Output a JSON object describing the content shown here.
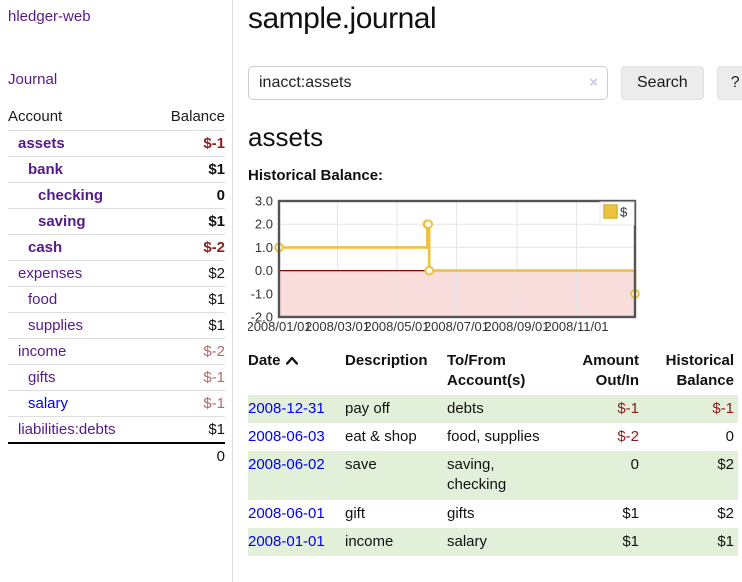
{
  "sidebar": {
    "brand": "hledger-web",
    "journal_link": "Journal",
    "accounts_header": "Account",
    "balance_header": "Balance",
    "accounts": [
      {
        "name": "assets",
        "balance": "$-1",
        "depth": 1,
        "bold": true,
        "link": "purple",
        "balance_class": "bold neg-strong"
      },
      {
        "name": "bank",
        "balance": "$1",
        "depth": 2,
        "bold": true,
        "link": "purple",
        "balance_class": "bold"
      },
      {
        "name": "checking",
        "balance": "0",
        "depth": 3,
        "bold": true,
        "link": "purple",
        "balance_class": "bold"
      },
      {
        "name": "saving",
        "balance": "$1",
        "depth": 3,
        "bold": true,
        "link": "purple",
        "balance_class": "bold"
      },
      {
        "name": "cash",
        "balance": "$-2",
        "depth": 2,
        "bold": true,
        "link": "purple",
        "balance_class": "bold neg-strong"
      },
      {
        "name": "expenses",
        "balance": "$2",
        "depth": 1,
        "bold": false,
        "link": "purple",
        "balance_class": ""
      },
      {
        "name": "food",
        "balance": "$1",
        "depth": 2,
        "bold": false,
        "link": "purple",
        "balance_class": ""
      },
      {
        "name": "supplies",
        "balance": "$1",
        "depth": 2,
        "bold": false,
        "link": "purple",
        "balance_class": ""
      },
      {
        "name": "income",
        "balance": "$-2",
        "depth": 1,
        "bold": false,
        "link": "purple",
        "balance_class": "neg-muted"
      },
      {
        "name": "gifts",
        "balance": "$-1",
        "depth": 2,
        "bold": false,
        "link": "purple",
        "balance_class": "neg-muted"
      },
      {
        "name": "salary",
        "balance": "$-1",
        "depth": 2,
        "bold": false,
        "link": "blue",
        "balance_class": "neg-muted"
      },
      {
        "name": "liabilities:debts",
        "balance": "$1",
        "depth": 1,
        "bold": false,
        "link": "purple",
        "balance_class": ""
      }
    ],
    "total": "0"
  },
  "main": {
    "title": "sample.journal",
    "search": {
      "value": "inacct:assets",
      "clear_icon": "×",
      "button_label": "Search",
      "help_label": "?"
    },
    "account_heading": "assets",
    "chart_label": "Historical Balance:"
  },
  "chart_data": {
    "type": "line",
    "step": true,
    "title": "Historical Balance",
    "x_start": "2008-01-01",
    "x_span_days": 365,
    "series": [
      {
        "name": "$",
        "color": "#edc240",
        "points": [
          [
            "2008-01-01",
            1
          ],
          [
            "2008-06-01",
            2
          ],
          [
            "2008-06-02",
            2
          ],
          [
            "2008-06-03",
            0
          ],
          [
            "2008-12-31",
            -1
          ]
        ]
      }
    ],
    "ylim": [
      -2,
      3
    ],
    "yticks": [
      "3.0",
      "2.0",
      "1.0",
      "0.0",
      "-1.0",
      "-2.0"
    ],
    "xticks": [
      "2008/01/01",
      "2008/03/01",
      "2008/05/01",
      "2008/07/01",
      "2008/09/01",
      "2008/11/01"
    ],
    "legend": {
      "label": "$",
      "position": "top-right"
    },
    "grid": true,
    "colors": {
      "negative_region": "#f9dcdc",
      "zero_line": "#8b0000",
      "grid_line": "#e6e6e6",
      "border": "#545454",
      "point_fill": "#ffffff"
    }
  },
  "register": {
    "headers": {
      "date": "Date",
      "description": "Description",
      "accounts": "To/From Account(s)",
      "amount": "Amount Out/In",
      "balance": "Historical Balance"
    },
    "rows": [
      {
        "date": "2008-12-31",
        "description": "pay off",
        "accounts": "debts",
        "amount": "$-1",
        "amount_neg": true,
        "balance": "$-1",
        "balance_neg": true,
        "highlight": true
      },
      {
        "date": "2008-06-03",
        "description": "eat & shop",
        "accounts": "food, supplies",
        "amount": "$-2",
        "amount_neg": true,
        "balance": "0",
        "balance_neg": false,
        "highlight": false
      },
      {
        "date": "2008-06-02",
        "description": "save",
        "accounts": "saving, checking",
        "amount": "0",
        "amount_neg": false,
        "balance": "$2",
        "balance_neg": false,
        "highlight": true
      },
      {
        "date": "2008-06-01",
        "description": "gift",
        "accounts": "gifts",
        "amount": "$1",
        "amount_neg": false,
        "balance": "$2",
        "balance_neg": false,
        "highlight": false
      },
      {
        "date": "2008-01-01",
        "description": "income",
        "accounts": "salary",
        "amount": "$1",
        "amount_neg": false,
        "balance": "$1",
        "balance_neg": false,
        "highlight": true
      }
    ]
  }
}
